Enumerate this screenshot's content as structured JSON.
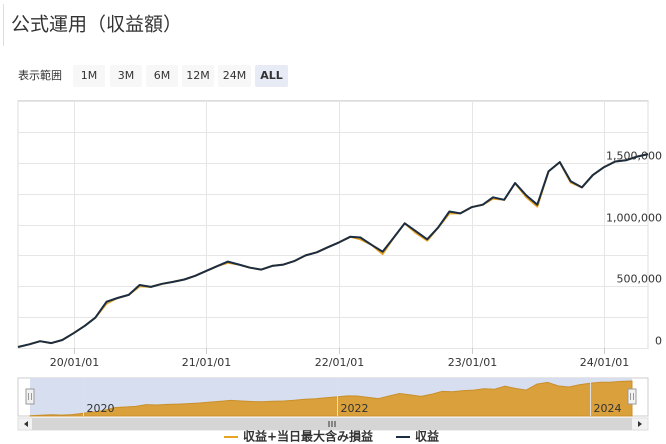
{
  "chart_data": {
    "type": "line",
    "title": "公式運用（収益額）",
    "range_selector": {
      "label": "表示範囲",
      "buttons": [
        "1M",
        "3M",
        "6M",
        "12M",
        "24M",
        "ALL"
      ],
      "selected": 5
    },
    "x": [
      "2019-08-01",
      "2019-09-01",
      "2019-10-01",
      "2019-11-01",
      "2019-12-01",
      "2020-01-01",
      "2020-02-01",
      "2020-03-01",
      "2020-04-01",
      "2020-05-01",
      "2020-06-01",
      "2020-07-01",
      "2020-08-01",
      "2020-09-01",
      "2020-10-01",
      "2020-11-01",
      "2020-12-01",
      "2021-01-01",
      "2021-02-01",
      "2021-03-01",
      "2021-04-01",
      "2021-05-01",
      "2021-06-01",
      "2021-07-01",
      "2021-08-01",
      "2021-09-01",
      "2021-10-01",
      "2021-11-01",
      "2021-12-01",
      "2022-01-01",
      "2022-02-01",
      "2022-03-01",
      "2022-04-01",
      "2022-05-01",
      "2022-06-01",
      "2022-07-01",
      "2022-08-01",
      "2022-09-01",
      "2022-10-01",
      "2022-11-01",
      "2022-12-01",
      "2023-01-01",
      "2023-02-01",
      "2023-03-01",
      "2023-04-01",
      "2023-05-01",
      "2023-06-01",
      "2023-07-01",
      "2023-08-01",
      "2023-09-01",
      "2023-10-01",
      "2023-11-01",
      "2023-12-01",
      "2024-01-01",
      "2024-02-01",
      "2024-03-01",
      "2024-04-01",
      "2024-05-01"
    ],
    "series": [
      {
        "name": "収益+当日最大含み損益",
        "color": "#e8a320",
        "values": [
          8000,
          30000,
          55000,
          40000,
          65000,
          120000,
          180000,
          245000,
          360000,
          405000,
          430000,
          500000,
          495000,
          520000,
          535000,
          555000,
          585000,
          625000,
          665000,
          690000,
          675000,
          650000,
          635000,
          665000,
          675000,
          705000,
          750000,
          775000,
          815000,
          855000,
          900000,
          880000,
          835000,
          760000,
          895000,
          1010000,
          930000,
          870000,
          975000,
          1090000,
          1090000,
          1140000,
          1160000,
          1210000,
          1200000,
          1335000,
          1220000,
          1145000,
          1430000,
          1505000,
          1340000,
          1300000,
          1400000,
          1465000,
          1510000,
          1520000,
          1550000,
          1570000
        ]
      },
      {
        "name": "収益",
        "color": "#1b2d42",
        "values": [
          8000,
          30000,
          55000,
          40000,
          65000,
          120000,
          180000,
          245000,
          375000,
          405000,
          430000,
          510000,
          495000,
          520000,
          535000,
          555000,
          585000,
          625000,
          665000,
          700000,
          675000,
          650000,
          635000,
          665000,
          675000,
          705000,
          750000,
          775000,
          815000,
          855000,
          900000,
          895000,
          835000,
          780000,
          895000,
          1010000,
          945000,
          880000,
          975000,
          1105000,
          1090000,
          1140000,
          1160000,
          1220000,
          1200000,
          1335000,
          1235000,
          1160000,
          1430000,
          1505000,
          1350000,
          1300000,
          1400000,
          1465000,
          1510000,
          1520000,
          1550000,
          1570000
        ]
      }
    ],
    "xlim": [
      "2019-08-01",
      "2024-05-01"
    ],
    "xticks": [
      {
        "value": "2020-01-01",
        "label": "20/01/01"
      },
      {
        "value": "2021-01-01",
        "label": "21/01/01"
      },
      {
        "value": "2022-01-01",
        "label": "22/01/01"
      },
      {
        "value": "2023-01-01",
        "label": "23/01/01"
      },
      {
        "value": "2024-01-01",
        "label": "24/01/01"
      }
    ],
    "ylim": [
      0,
      2000000
    ],
    "yticks": [
      0,
      {
        "value": 500000,
        "label": "500,000"
      },
      {
        "value": 1000000,
        "label": "1,000,000"
      },
      {
        "value": 1500000,
        "label": "1,500,000"
      }
    ],
    "minor_grid": [
      250000,
      750000,
      1250000,
      1750000,
      2000000
    ],
    "grid": true,
    "navigator_labels": [
      {
        "value": "2020-01-01",
        "label": "2020"
      },
      {
        "value": "2022-01-01",
        "label": "2022"
      },
      {
        "value": "2024-01-01",
        "label": "2024"
      }
    ]
  }
}
